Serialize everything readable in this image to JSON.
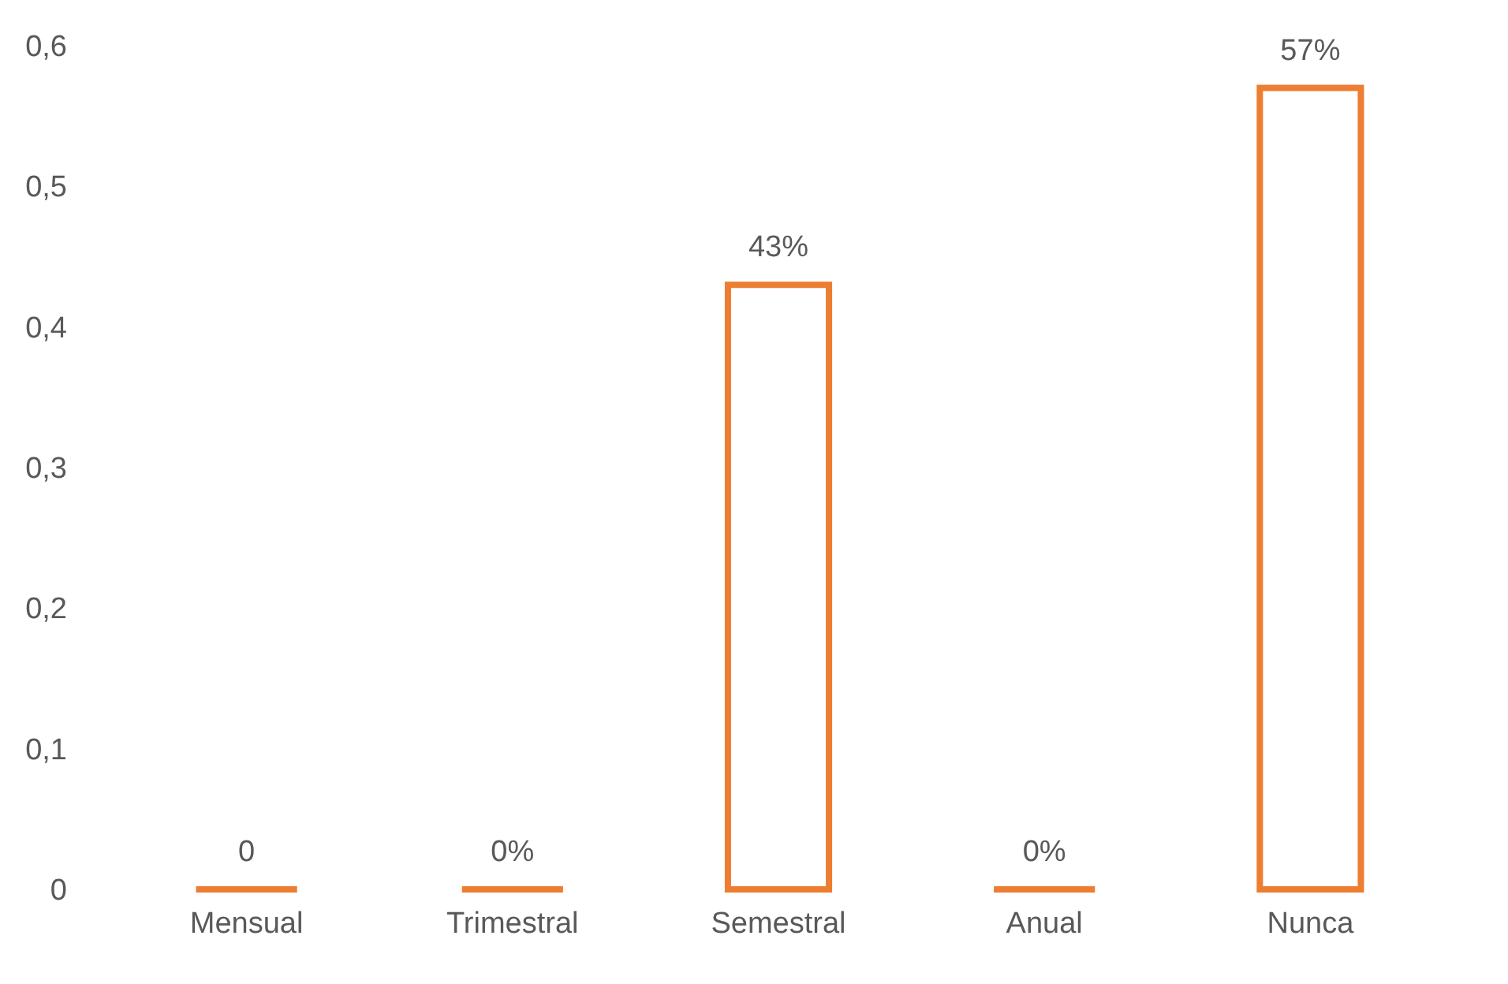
{
  "chart_data": {
    "type": "bar",
    "categories": [
      "Mensual",
      "Trimestral",
      "Semestral",
      "Anual",
      "Nunca"
    ],
    "series": [
      {
        "color": "#ed7d31",
        "values": [
          0,
          0,
          0.43,
          0,
          0.57
        ],
        "value_labels": [
          "0",
          "0%",
          "43%",
          "0%",
          "57%"
        ]
      }
    ],
    "ylim": [
      0,
      0.6
    ],
    "yticks": [
      0,
      {
        "value": 0.1,
        "label": "0,1"
      },
      {
        "value": 0.2,
        "label": "0,2"
      },
      {
        "value": 0.3,
        "label": "0,3"
      },
      {
        "value": 0.4,
        "label": "0,4"
      },
      {
        "value": 0.5,
        "label": "0,5"
      },
      {
        "value": 0.6,
        "label": "0,6"
      }
    ],
    "grid": false
  }
}
